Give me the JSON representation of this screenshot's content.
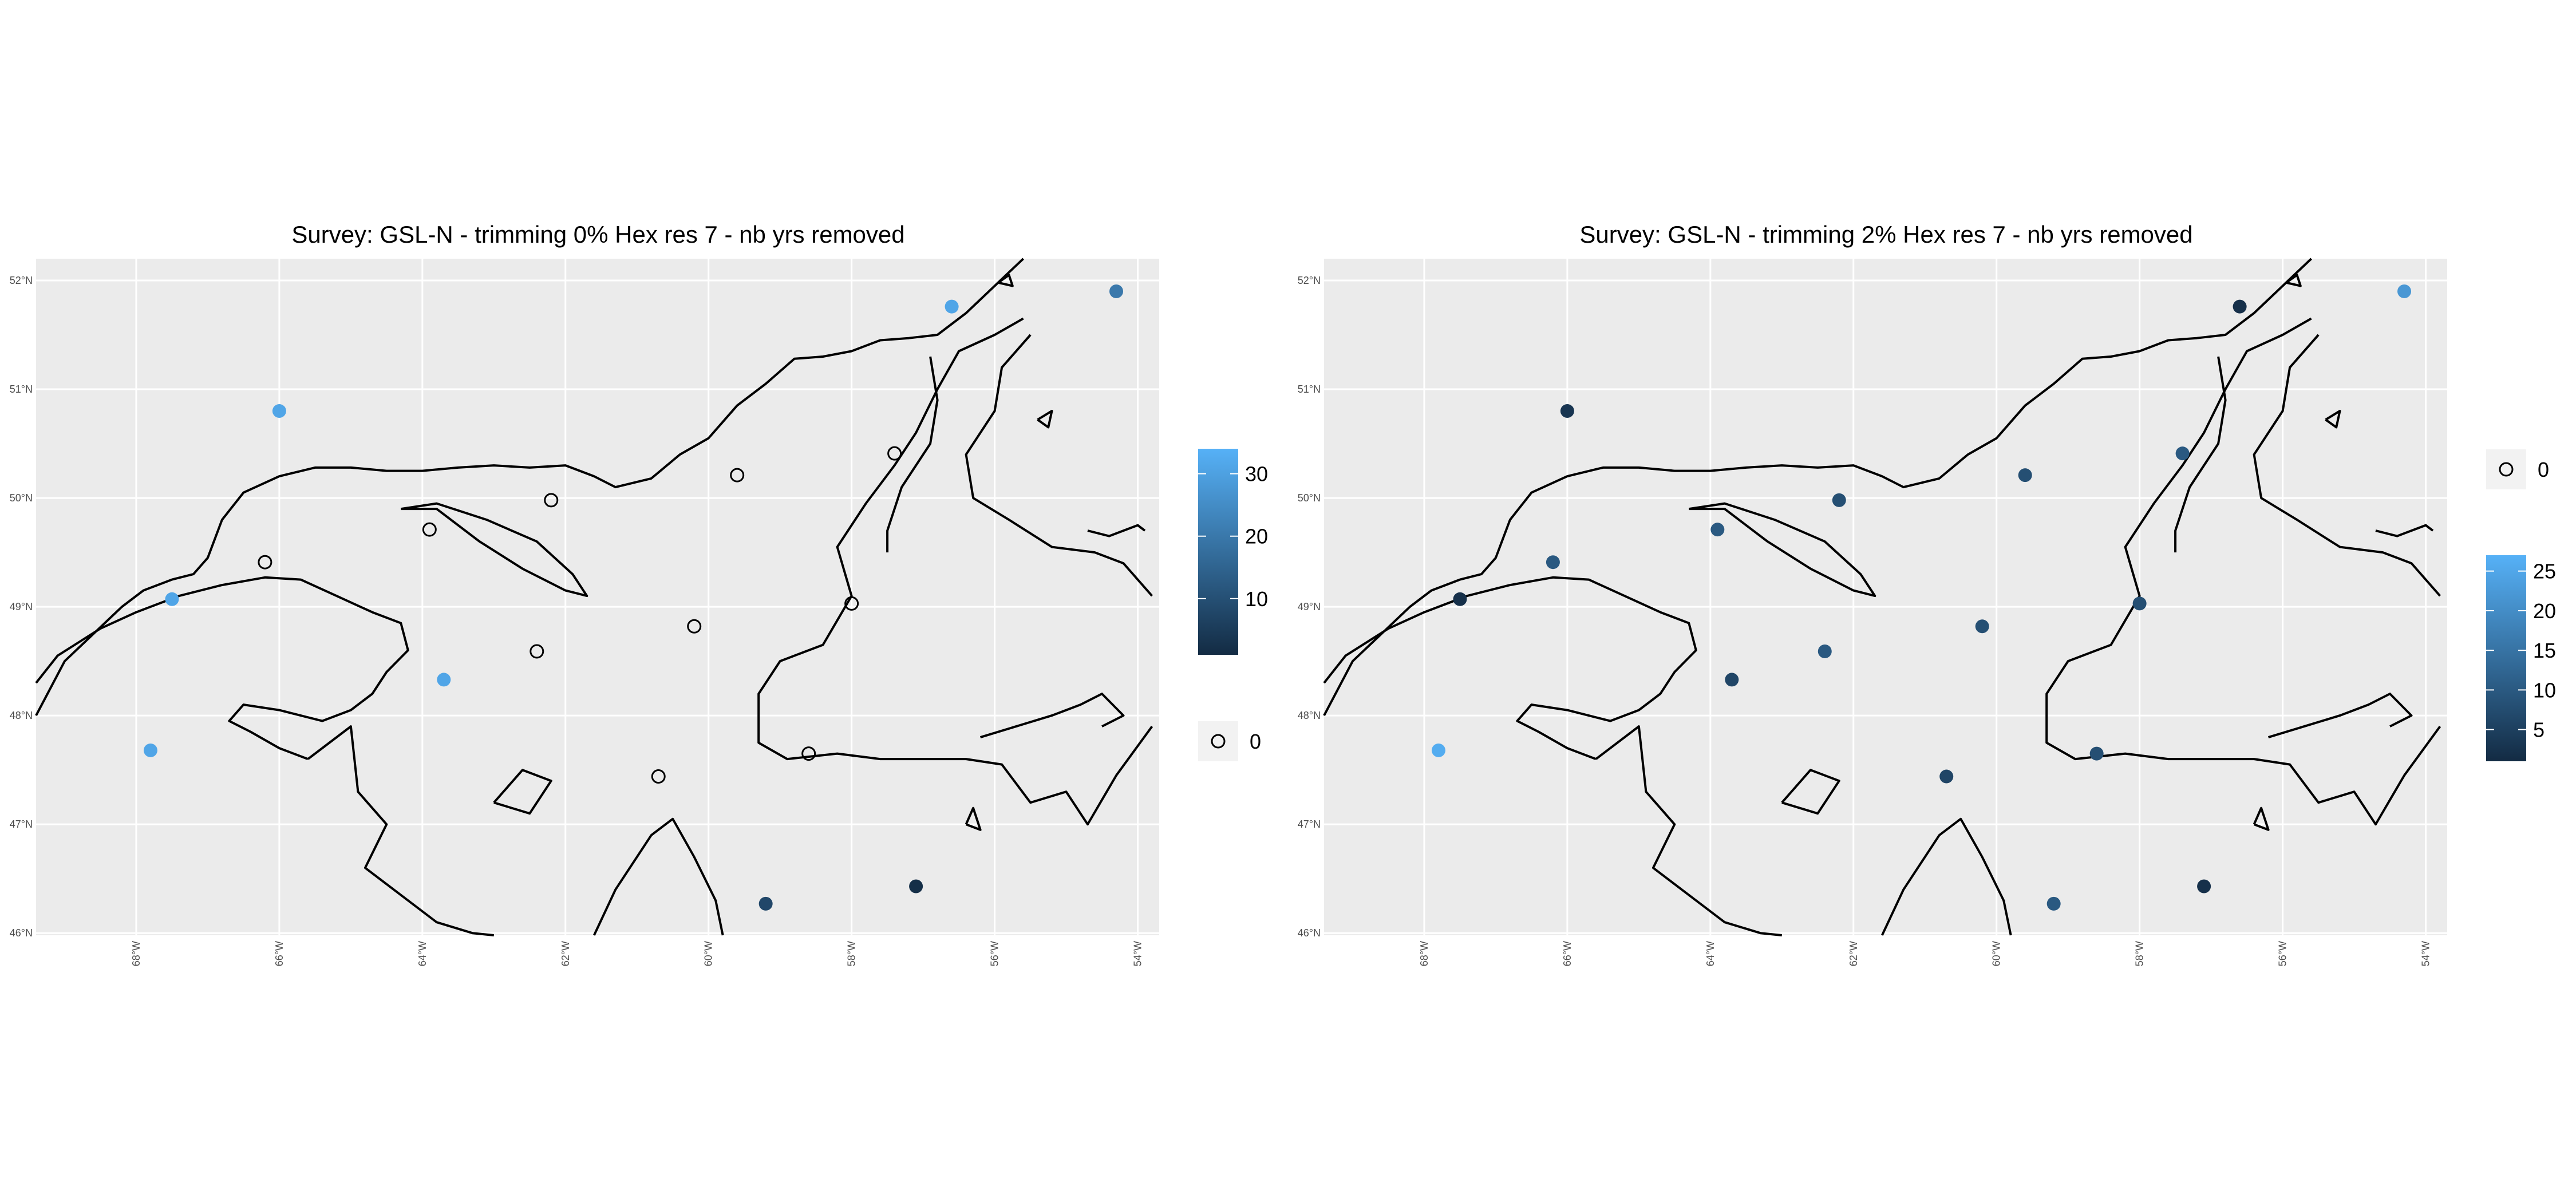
{
  "panels": [
    {
      "title": "Survey: GSL-N - trimming 0% Hex res 7 - nb yrs removed",
      "colorbar": {
        "ticks": [
          10,
          20,
          30
        ],
        "min": 1,
        "max": 34
      },
      "zero_legend_label": "0",
      "points": [
        {
          "lon": -67.5,
          "lat": 49.07,
          "value": 31
        },
        {
          "lon": -67.8,
          "lat": 47.68,
          "value": 31
        },
        {
          "lon": -66.0,
          "lat": 50.8,
          "value": 31
        },
        {
          "lon": -63.7,
          "lat": 48.33,
          "value": 31
        },
        {
          "lon": -56.6,
          "lat": 51.76,
          "value": 31
        },
        {
          "lon": -54.3,
          "lat": 51.9,
          "value": 20
        },
        {
          "lon": -59.2,
          "lat": 46.27,
          "value": 8
        },
        {
          "lon": -57.1,
          "lat": 46.43,
          "value": 2
        },
        {
          "lon": -66.2,
          "lat": 49.41,
          "value": 0
        },
        {
          "lon": -63.9,
          "lat": 49.71,
          "value": 0
        },
        {
          "lon": -62.2,
          "lat": 49.98,
          "value": 0
        },
        {
          "lon": -59.6,
          "lat": 50.21,
          "value": 0
        },
        {
          "lon": -57.4,
          "lat": 50.41,
          "value": 0
        },
        {
          "lon": -62.4,
          "lat": 48.59,
          "value": 0
        },
        {
          "lon": -60.2,
          "lat": 48.82,
          "value": 0
        },
        {
          "lon": -58.0,
          "lat": 49.03,
          "value": 0
        },
        {
          "lon": -60.7,
          "lat": 47.44,
          "value": 0
        },
        {
          "lon": -58.6,
          "lat": 47.65,
          "value": 0
        }
      ]
    },
    {
      "title": "Survey: GSL-N - trimming 2% Hex res 7 - nb yrs removed",
      "colorbar": {
        "ticks": [
          5,
          10,
          15,
          20,
          25
        ],
        "min": 1,
        "max": 27
      },
      "zero_legend_label": "0",
      "points": [
        {
          "lon": -67.5,
          "lat": 49.07,
          "value": 2
        },
        {
          "lon": -67.8,
          "lat": 47.68,
          "value": 26
        },
        {
          "lon": -66.0,
          "lat": 50.8,
          "value": 3
        },
        {
          "lon": -63.7,
          "lat": 48.33,
          "value": 6
        },
        {
          "lon": -56.6,
          "lat": 51.76,
          "value": 2
        },
        {
          "lon": -54.3,
          "lat": 51.9,
          "value": 22
        },
        {
          "lon": -59.2,
          "lat": 46.27,
          "value": 10
        },
        {
          "lon": -57.1,
          "lat": 46.43,
          "value": 2
        },
        {
          "lon": -66.2,
          "lat": 49.41,
          "value": 10
        },
        {
          "lon": -63.9,
          "lat": 49.71,
          "value": 10
        },
        {
          "lon": -62.2,
          "lat": 49.98,
          "value": 8
        },
        {
          "lon": -59.6,
          "lat": 50.21,
          "value": 8
        },
        {
          "lon": -57.4,
          "lat": 50.41,
          "value": 10
        },
        {
          "lon": -62.4,
          "lat": 48.59,
          "value": 10
        },
        {
          "lon": -60.2,
          "lat": 48.82,
          "value": 8
        },
        {
          "lon": -58.0,
          "lat": 49.03,
          "value": 8
        },
        {
          "lon": -60.7,
          "lat": 47.44,
          "value": 6
        },
        {
          "lon": -58.6,
          "lat": 47.65,
          "value": 8
        }
      ]
    }
  ],
  "axes": {
    "lon_range": [
      -69.4,
      -53.7
    ],
    "lat_range": [
      45.98,
      52.2
    ],
    "lat_ticks": [
      {
        "v": 52,
        "label": "52°N"
      },
      {
        "v": 51,
        "label": "51°N"
      },
      {
        "v": 50,
        "label": "50°N"
      },
      {
        "v": 49,
        "label": "49°N"
      },
      {
        "v": 48,
        "label": "48°N"
      },
      {
        "v": 47,
        "label": "47°N"
      },
      {
        "v": 46,
        "label": "46°N"
      }
    ],
    "lon_ticks": [
      {
        "v": -68,
        "label": "68°W"
      },
      {
        "v": -66,
        "label": "66°W"
      },
      {
        "v": -64,
        "label": "64°W"
      },
      {
        "v": -62,
        "label": "62°W"
      },
      {
        "v": -60,
        "label": "60°W"
      },
      {
        "v": -58,
        "label": "58°W"
      },
      {
        "v": -56,
        "label": "56°W"
      },
      {
        "v": -54,
        "label": "54°W"
      }
    ]
  },
  "colors": {
    "panel_bg": "#ebebeb",
    "grid": "#ffffff",
    "coast": "#000000",
    "low": "#132b43",
    "high": "#56b1f7"
  }
}
